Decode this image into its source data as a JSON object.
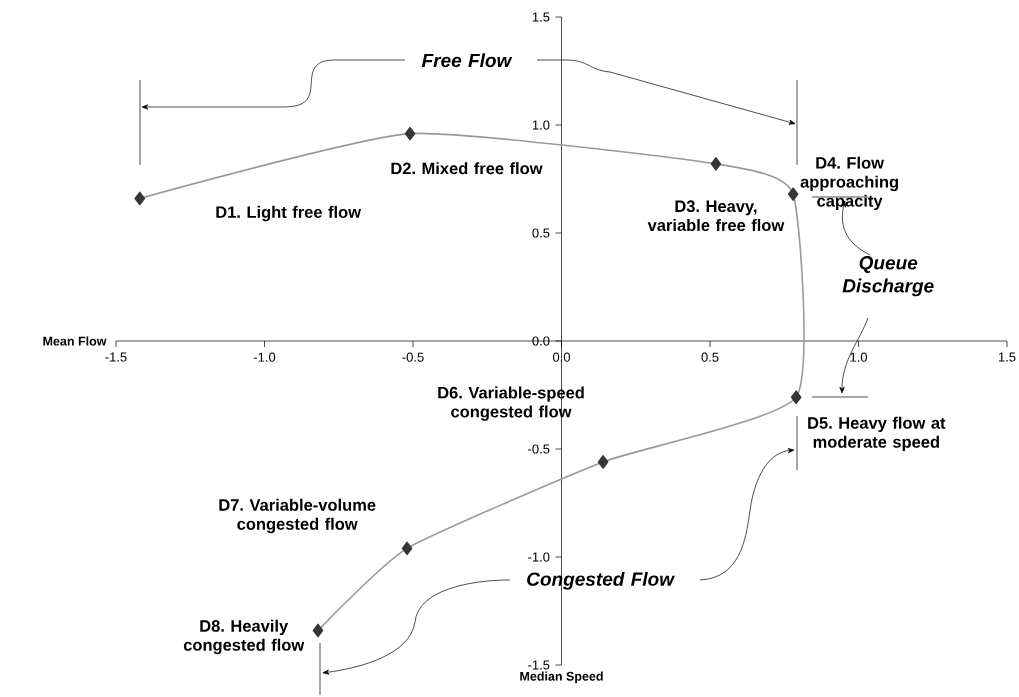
{
  "chart_data": {
    "type": "line",
    "xlabel": "Median Speed",
    "ylabel": "Mean Flow",
    "xlim": [
      -1.5,
      1.5
    ],
    "ylim": [
      -1.5,
      1.5
    ],
    "xticks": [
      -1.5,
      {
        "value": -1,
        "label": "-1.0"
      },
      -0.5,
      {
        "value": 0,
        "label": "0.0"
      },
      0.5,
      {
        "value": 1,
        "label": "1.0"
      },
      1.5
    ],
    "yticks": [
      -1.5,
      {
        "value": -1,
        "label": "-1.0"
      },
      -0.5,
      {
        "value": 0,
        "label": "0.0"
      },
      0.5,
      {
        "value": 1,
        "label": "1.0"
      },
      1.5
    ],
    "marker": "diamond",
    "line_style": "solid",
    "series": [
      {
        "color": "#999999",
        "x": [
          -1.42,
          -0.51,
          0.52,
          0.78,
          0.79,
          0.14,
          -0.52,
          -0.82
        ],
        "values": [
          0.66,
          0.96,
          0.82,
          0.68,
          -0.26,
          -0.56,
          -0.96,
          -1.34
        ]
      }
    ],
    "annotations": [
      "D1. Light free flow",
      "D2. Mixed free flow",
      "D3. Heavy, variable free flow",
      "D4. Flow approaching capacity",
      "D5. Heavy flow at moderate speed",
      "D6. Variable-speed congested flow",
      "D7. Variable-volume congested flow",
      "D8. Heavily congested flow",
      "Free Flow",
      "Queue Discharge",
      "Congested Flow"
    ]
  }
}
